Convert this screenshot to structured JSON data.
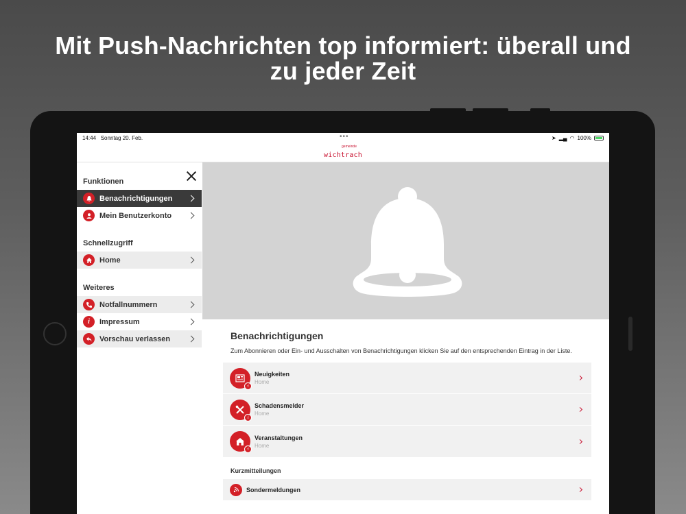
{
  "headline": {
    "line1": "Mit Push-Nachrichten top informiert: überall und",
    "line2": "zu jeder Zeit"
  },
  "statusbar": {
    "time": "14:44",
    "date": "Sonntag 20. Feb.",
    "battery": "100%"
  },
  "logo": {
    "small": "gemeinde",
    "big": "wichtrach"
  },
  "sidebar": {
    "section_functions": "Funktionen",
    "section_quick": "Schnellzugriff",
    "section_more": "Weiteres",
    "items": [
      {
        "label": "Benachrichtigungen",
        "icon": "bell-icon"
      },
      {
        "label": "Mein Benutzerkonto",
        "icon": "user-icon"
      },
      {
        "label": "Home",
        "icon": "home-icon"
      },
      {
        "label": "Notfallnummern",
        "icon": "phone-icon"
      },
      {
        "label": "Impressum",
        "icon": "info-icon"
      },
      {
        "label": "Vorschau verlassen",
        "icon": "back-arrow-icon"
      }
    ]
  },
  "main": {
    "title": "Benachrichtigungen",
    "description": "Zum Abonnieren oder Ein- und Ausschalten von Benachrichtigungen klicken Sie auf den entsprechenden Eintrag in der Liste.",
    "cards": [
      {
        "title": "Neuigkeiten",
        "sub": "Home",
        "icon": "newspaper-icon"
      },
      {
        "title": "Schadensmelder",
        "sub": "Home",
        "icon": "tools-icon"
      },
      {
        "title": "Veranstaltungen",
        "sub": "Home",
        "icon": "event-icon"
      }
    ],
    "kurz_title": "Kurzmitteilungen",
    "special": {
      "title": "Sondermeldungen",
      "icon": "broadcast-icon"
    }
  },
  "colors": {
    "accent": "#d32027",
    "active_bg": "#3a3a3a",
    "hero_bg": "#d3d3d3"
  }
}
